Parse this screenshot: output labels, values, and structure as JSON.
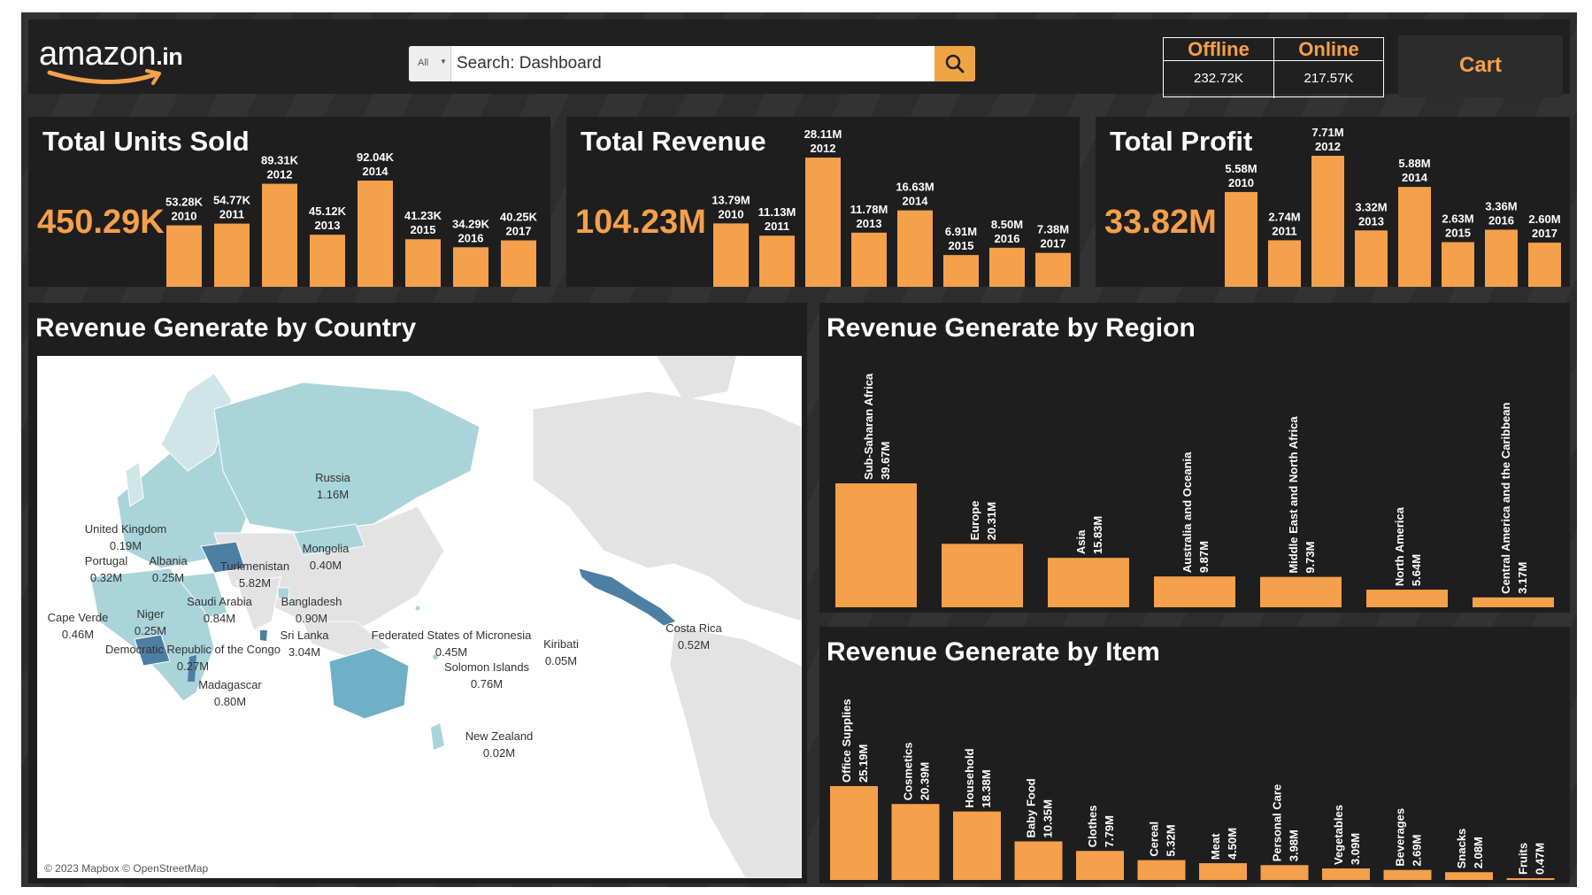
{
  "header": {
    "logo": {
      "brand": "amazon",
      "suffix": ".in"
    },
    "search": {
      "category": "All",
      "placeholder": "Search: Dashboard"
    },
    "channels": {
      "offline_label": "Offline",
      "offline_value": "232.72K",
      "online_label": "Online",
      "online_value": "217.57K"
    },
    "cart_label": "Cart"
  },
  "colors": {
    "accent": "#f5a04a",
    "panel": "#1e1e1e",
    "map_light": "#a9d4d9",
    "map_dark": "#4d7fa5"
  },
  "kpis": {
    "units": {
      "title": "Total Units Sold",
      "total": "450.29K"
    },
    "revenue": {
      "title": "Total Revenue",
      "total": "104.23M"
    },
    "profit": {
      "title": "Total Profit",
      "total": "33.82M"
    }
  },
  "country_map": {
    "title": "Revenue Generate by Country",
    "credit": "© 2023 Mapbox © OpenStreetMap",
    "labels": [
      {
        "name": "Russia",
        "value": "1.16M"
      },
      {
        "name": "United Kingdom",
        "value": "0.19M"
      },
      {
        "name": "Mongolia",
        "value": "0.40M"
      },
      {
        "name": "Portugal",
        "value": "0.32M"
      },
      {
        "name": "Albania",
        "value": "0.25M"
      },
      {
        "name": "Turkmenistan",
        "value": "5.82M"
      },
      {
        "name": "Saudi Arabia",
        "value": "0.84M"
      },
      {
        "name": "Bangladesh",
        "value": "0.90M"
      },
      {
        "name": "Cape Verde",
        "value": "0.46M"
      },
      {
        "name": "Niger",
        "value": "0.25M"
      },
      {
        "name": "Sri Lanka",
        "value": "3.04M"
      },
      {
        "name": "Federated States of Micronesia",
        "value": "0.45M"
      },
      {
        "name": "Kiribati",
        "value": "0.05M"
      },
      {
        "name": "Democratic Republic of the Congo",
        "value": "0.27M"
      },
      {
        "name": "Solomon Islands",
        "value": "0.76M"
      },
      {
        "name": "Madagascar",
        "value": "0.80M"
      },
      {
        "name": "Costa Rica",
        "value": "0.52M"
      },
      {
        "name": "New Zealand",
        "value": "0.02M"
      }
    ]
  },
  "chart_data": [
    {
      "type": "bar",
      "id": "units",
      "categories": [
        "2010",
        "2011",
        "2012",
        "2013",
        "2014",
        "2015",
        "2016",
        "2017"
      ],
      "values": [
        53.28,
        54.77,
        89.31,
        45.12,
        92.04,
        41.23,
        34.29,
        40.25
      ],
      "labels": [
        "53.28K",
        "54.77K",
        "89.31K",
        "45.12K",
        "92.04K",
        "41.23K",
        "34.29K",
        "40.25K"
      ]
    },
    {
      "type": "bar",
      "id": "revenue",
      "categories": [
        "2010",
        "2011",
        "2012",
        "2013",
        "2014",
        "2015",
        "2016",
        "2017"
      ],
      "values": [
        13.79,
        11.13,
        28.11,
        11.78,
        16.63,
        6.91,
        8.5,
        7.38
      ],
      "labels": [
        "13.79M",
        "11.13M",
        "28.11M",
        "11.78M",
        "16.63M",
        "6.91M",
        "8.50M",
        "7.38M"
      ]
    },
    {
      "type": "bar",
      "id": "profit",
      "categories": [
        "2010",
        "2011",
        "2012",
        "2013",
        "2014",
        "2015",
        "2016",
        "2017"
      ],
      "values": [
        5.58,
        2.74,
        7.71,
        3.32,
        5.88,
        2.63,
        3.36,
        2.6
      ],
      "labels": [
        "5.58M",
        "2.74M",
        "7.71M",
        "3.32M",
        "5.88M",
        "2.63M",
        "3.36M",
        "2.60M"
      ]
    },
    {
      "type": "bar",
      "id": "region",
      "title": "Revenue Generate by Region",
      "categories": [
        "Sub-Saharan Africa",
        "Europe",
        "Asia",
        "Australia and Oceania",
        "Middle East and North Africa",
        "North America",
        "Central America and the Caribbean"
      ],
      "values": [
        39.67,
        20.31,
        15.83,
        9.87,
        9.73,
        5.64,
        3.17
      ],
      "labels": [
        "39.67M",
        "20.31M",
        "15.83M",
        "9.87M",
        "9.73M",
        "5.64M",
        "3.17M"
      ]
    },
    {
      "type": "bar",
      "id": "item",
      "title": "Revenue Generate by Item",
      "categories": [
        "Office Supplies",
        "Cosmetics",
        "Household",
        "Baby Food",
        "Clothes",
        "Cereal",
        "Meat",
        "Personal Care",
        "Vegetables",
        "Beverages",
        "Snacks",
        "Fruits"
      ],
      "values": [
        25.19,
        20.39,
        18.38,
        10.35,
        7.79,
        5.32,
        4.5,
        3.98,
        3.09,
        2.69,
        2.08,
        0.47
      ],
      "labels": [
        "25.19M",
        "20.39M",
        "18.38M",
        "10.35M",
        "7.79M",
        "5.32M",
        "4.50M",
        "3.98M",
        "3.09M",
        "2.69M",
        "2.08M",
        "0.47M"
      ]
    }
  ]
}
